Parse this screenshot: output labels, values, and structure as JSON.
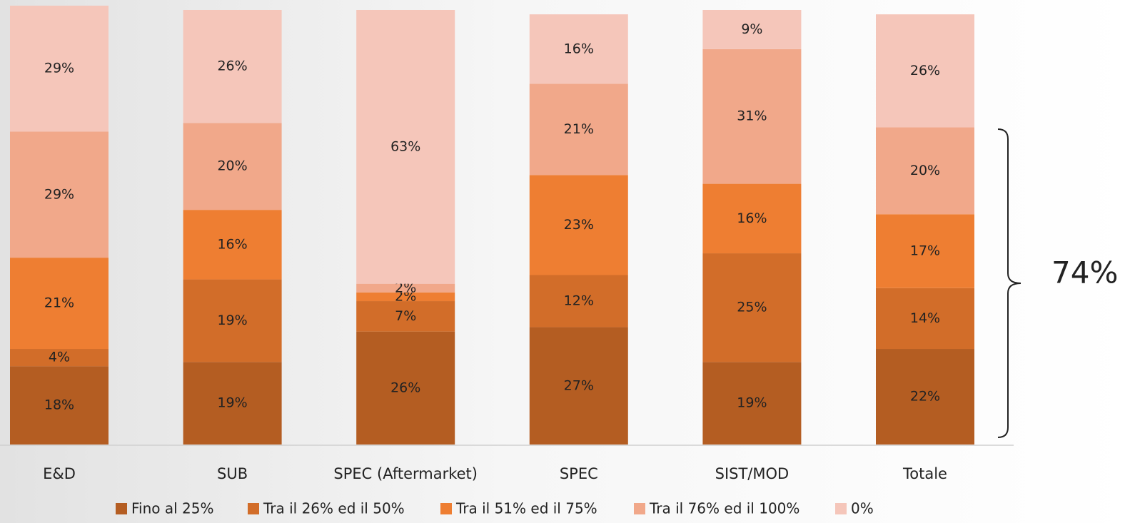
{
  "chart_data": {
    "type": "stacked_bar",
    "categories": [
      "E&D",
      "SUB",
      "SPEC (Aftermarket)",
      "SPEC",
      "SIST/MOD",
      "Totale"
    ],
    "ylim": [
      0,
      100
    ],
    "series": [
      {
        "name": "Fino al 25%",
        "color": "#b45d22",
        "values": [
          18,
          19,
          26,
          27,
          19,
          22
        ],
        "value_labels": [
          "18%",
          "19%",
          "26%",
          "27%",
          "19%",
          "22%"
        ]
      },
      {
        "name": "Tra il 26% ed il 50%",
        "color": "#d26d29",
        "values": [
          4,
          19,
          7,
          12,
          25,
          14
        ],
        "value_labels": [
          "4%",
          "19%",
          "7%",
          "12%",
          "25%",
          "14%"
        ]
      },
      {
        "name": "Tra il 51% ed il 75%",
        "color": "#ee7e32",
        "values": [
          21,
          16,
          2,
          23,
          16,
          17
        ],
        "value_labels": [
          "21%",
          "16%",
          "2%",
          "23%",
          "16%",
          "17%"
        ]
      },
      {
        "name": "Tra il 76% ed il 100%",
        "color": "#f1a88a",
        "values": [
          29,
          20,
          2,
          21,
          31,
          20
        ],
        "value_labels": [
          "29%",
          "20%",
          "2%",
          "21%",
          "31%",
          "20%"
        ]
      },
      {
        "name": "0%",
        "color": "#f5c6ba",
        "values": [
          29,
          26,
          63,
          16,
          9,
          26
        ],
        "value_labels": [
          "29%",
          "26%",
          "63%",
          "16%",
          "9%",
          "26%"
        ]
      }
    ],
    "annotations": [
      "74%"
    ]
  }
}
